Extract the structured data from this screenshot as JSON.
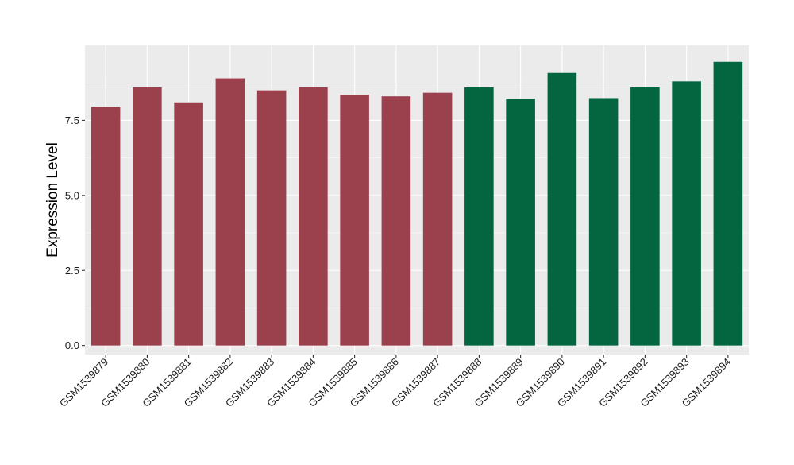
{
  "chart_data": {
    "type": "bar",
    "categories": [
      "GSM1539879",
      "GSM1539880",
      "GSM1539881",
      "GSM1539882",
      "GSM1539883",
      "GSM1539884",
      "GSM1539885",
      "GSM1539886",
      "GSM1539887",
      "GSM1539888",
      "GSM1539889",
      "GSM1539890",
      "GSM1539891",
      "GSM1539892",
      "GSM1539893",
      "GSM1539894"
    ],
    "values": [
      7.95,
      8.6,
      8.1,
      8.9,
      8.5,
      8.6,
      8.35,
      8.3,
      8.42,
      8.6,
      8.22,
      9.08,
      8.24,
      8.6,
      8.8,
      9.45
    ],
    "groups": [
      0,
      0,
      0,
      0,
      0,
      0,
      0,
      0,
      0,
      1,
      1,
      1,
      1,
      1,
      1,
      1
    ],
    "group_colors": [
      "#9b414d",
      "#036641"
    ],
    "title": "",
    "xlabel": "",
    "ylabel": "Expression Level",
    "ylim": [
      -0.3,
      10.0
    ],
    "yticks": [
      0.0,
      2.5,
      5.0,
      7.5
    ],
    "ytick_labels": [
      "0.0",
      "2.5",
      "5.0",
      "7.5"
    ],
    "grid": true,
    "panel_background": "#ebebeb",
    "grid_color": "#ffffff"
  }
}
